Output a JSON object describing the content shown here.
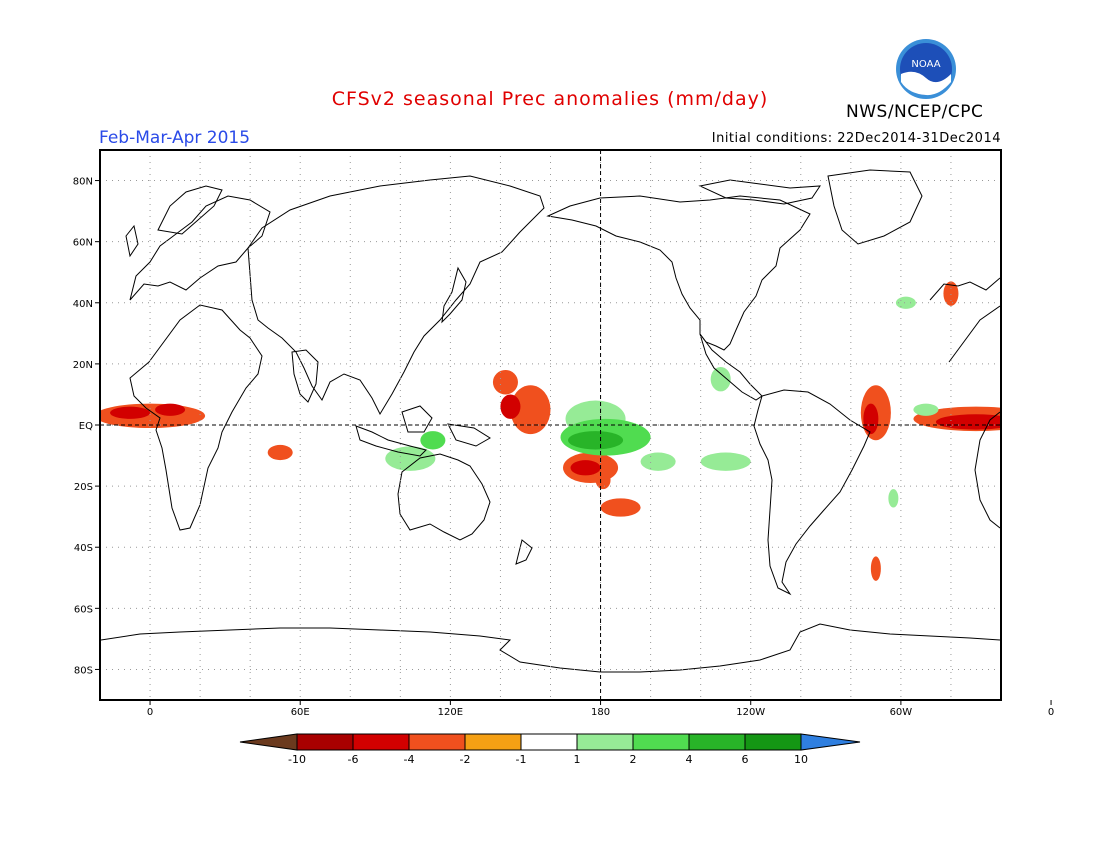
{
  "header": {
    "title": "CFSv2 seasonal Prec anomalies (mm/day)",
    "period": "Feb-Mar-Apr 2015",
    "initial_conditions": "Initial conditions: 22Dec2014-31Dec2014",
    "agency": "NWS/NCEP/CPC",
    "logo_text": "NOAA"
  },
  "map": {
    "lon_range": [
      -20,
      340
    ],
    "lat_range": [
      -90,
      90
    ],
    "y_ticks": [
      {
        "lat": 80,
        "label": "80N"
      },
      {
        "lat": 60,
        "label": "60N"
      },
      {
        "lat": 40,
        "label": "40N"
      },
      {
        "lat": 20,
        "label": "20N"
      },
      {
        "lat": 0,
        "label": "EQ"
      },
      {
        "lat": -20,
        "label": "20S"
      },
      {
        "lat": -40,
        "label": "40S"
      },
      {
        "lat": -60,
        "label": "60S"
      },
      {
        "lat": -80,
        "label": "80S"
      }
    ],
    "x_ticks": [
      {
        "lon": 0,
        "label": "0"
      },
      {
        "lon": 60,
        "label": "60E"
      },
      {
        "lon": 120,
        "label": "120E"
      },
      {
        "lon": 180,
        "label": "180"
      },
      {
        "lon": 240,
        "label": "120W"
      },
      {
        "lon": 300,
        "label": "60W"
      },
      {
        "lon": 360,
        "label": "0"
      }
    ]
  },
  "colorbar": {
    "below_color": "#6b3a1e",
    "above_color": "#2f7fe0",
    "bins": [
      "#a80000",
      "#d20000",
      "#f0501e",
      "#f5a014",
      "#ffffff",
      "#96eb96",
      "#50dc50",
      "#28b428",
      "#149614"
    ],
    "labels": [
      "-10",
      "-6",
      "-4",
      "-2",
      "-1",
      "1",
      "2",
      "4",
      "6",
      "10"
    ]
  },
  "anomalies": [
    {
      "lon": 0,
      "lat": 3,
      "rx": 22,
      "ry": 4,
      "value": -2.5
    },
    {
      "lon": -8,
      "lat": 4,
      "rx": 8,
      "ry": 2,
      "value": -4.5
    },
    {
      "lon": 8,
      "lat": 5,
      "rx": 6,
      "ry": 2,
      "value": -4.5
    },
    {
      "lon": 52,
      "lat": -9,
      "rx": 5,
      "ry": 2.5,
      "value": -2.5
    },
    {
      "lon": 152,
      "lat": 5,
      "rx": 8,
      "ry": 8,
      "value": -2.5
    },
    {
      "lon": 142,
      "lat": 14,
      "rx": 5,
      "ry": 4,
      "value": -2.5
    },
    {
      "lon": 144,
      "lat": 6,
      "rx": 4,
      "ry": 4,
      "value": -4.5
    },
    {
      "lon": 176,
      "lat": -14,
      "rx": 11,
      "ry": 5,
      "value": -2.5
    },
    {
      "lon": 174,
      "lat": -14,
      "rx": 6,
      "ry": 2.5,
      "value": -4.5
    },
    {
      "lon": 188,
      "lat": -27,
      "rx": 8,
      "ry": 3,
      "value": -2.5
    },
    {
      "lon": 181,
      "lat": -18,
      "rx": 3,
      "ry": 3,
      "value": -2.5
    },
    {
      "lon": 178,
      "lat": 2,
      "rx": 12,
      "ry": 6,
      "value": 1.5
    },
    {
      "lon": 182,
      "lat": -4,
      "rx": 18,
      "ry": 6,
      "value": 2.5
    },
    {
      "lon": 178,
      "lat": -5,
      "rx": 11,
      "ry": 3,
      "value": 4.5
    },
    {
      "lon": 203,
      "lat": -12,
      "rx": 7,
      "ry": 3,
      "value": 1.5
    },
    {
      "lon": 230,
      "lat": -12,
      "rx": 10,
      "ry": 3,
      "value": 1.5
    },
    {
      "lon": 104,
      "lat": -11,
      "rx": 10,
      "ry": 4,
      "value": 1.5
    },
    {
      "lon": 113,
      "lat": -5,
      "rx": 5,
      "ry": 3,
      "value": 2.5
    },
    {
      "lon": 228,
      "lat": 15,
      "rx": 4,
      "ry": 4,
      "value": 1.5
    },
    {
      "lon": 290,
      "lat": 4,
      "rx": 6,
      "ry": 9,
      "value": -2.5
    },
    {
      "lon": 288,
      "lat": 2,
      "rx": 3,
      "ry": 5,
      "value": -4.5
    },
    {
      "lon": 330,
      "lat": 2,
      "rx": 25,
      "ry": 4,
      "value": -2.5
    },
    {
      "lon": 330,
      "lat": 1,
      "rx": 16,
      "ry": 2.5,
      "value": -4.5
    },
    {
      "lon": 310,
      "lat": 5,
      "rx": 5,
      "ry": 2,
      "value": 1.5
    },
    {
      "lon": 302,
      "lat": 40,
      "rx": 4,
      "ry": 2,
      "value": 1.5
    },
    {
      "lon": 320,
      "lat": 43,
      "rx": 3,
      "ry": 4,
      "value": -2.5
    },
    {
      "lon": 297,
      "lat": -24,
      "rx": 2,
      "ry": 3,
      "value": 1.5
    },
    {
      "lon": 290,
      "lat": -47,
      "rx": 2,
      "ry": 4,
      "value": -2.5
    }
  ]
}
